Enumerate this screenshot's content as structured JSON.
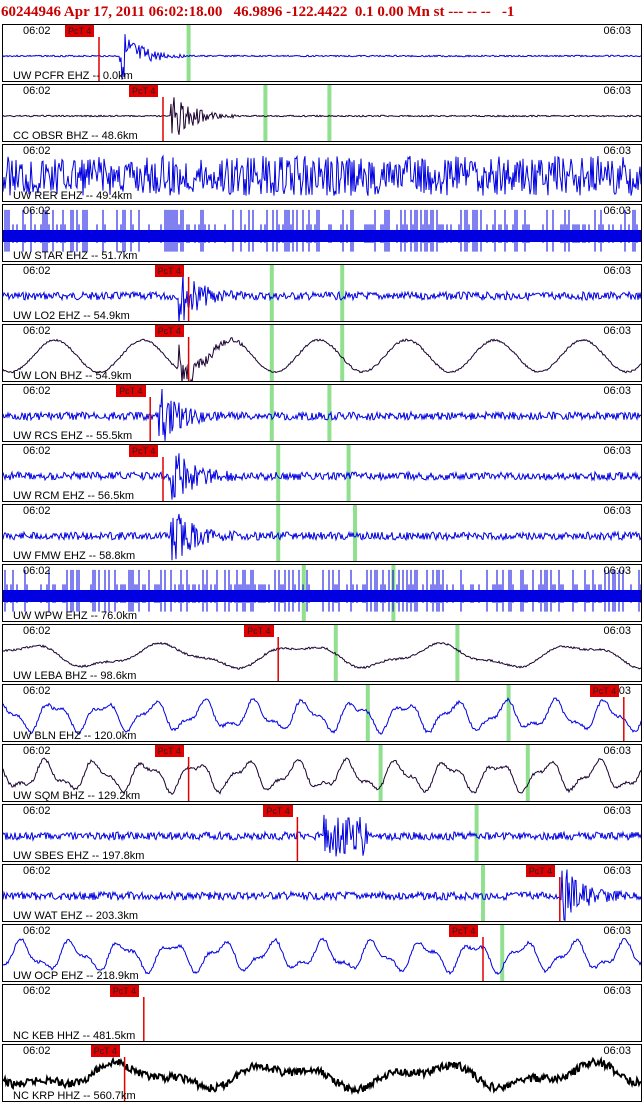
{
  "header": {
    "text": "60244946 Apr 17, 2011 06:02:18.00   46.9896 -122.4422  0.1 0.00 Mn st --- -- --   -1"
  },
  "time_labels": {
    "start": "06:02",
    "end": "06:03"
  },
  "pick_label": "PcT 4",
  "colors": {
    "header": "#c80000",
    "blue_trace": "#0000e0",
    "dark_trace": "#1a0030",
    "black_trace": "#000000",
    "pick": "#e00000",
    "marker": "#90e090"
  },
  "traces": [
    {
      "station": "UW PCFR EHZ -- 0.0km",
      "color": "blue",
      "style": "flat_burst",
      "pick": 0.15,
      "burst": 0.19,
      "markers": [
        0.29
      ]
    },
    {
      "station": "CC OBSR BHZ -- 48.6km",
      "color": "dark",
      "style": "flat_burst",
      "pick": 0.25,
      "burst": 0.27,
      "markers": [
        0.41,
        0.51
      ]
    },
    {
      "station": "UW RER EHZ -- 49.4km",
      "color": "blue",
      "style": "noisy",
      "markers": []
    },
    {
      "station": "UW STAR EHZ -- 51.7km",
      "color": "blue",
      "style": "spiky",
      "markers": []
    },
    {
      "station": "UW LO2 EHZ -- 54.9km",
      "color": "blue",
      "style": "noise_burst",
      "pick": 0.29,
      "burst": 0.28,
      "markers": [
        0.42,
        0.53
      ]
    },
    {
      "station": "UW LON BHZ -- 54.9km",
      "color": "dark",
      "style": "wave_burst",
      "pick": 0.29,
      "burst": 0.28,
      "markers": [
        0.42,
        0.53
      ]
    },
    {
      "station": "UW RCS EHZ -- 55.5km",
      "color": "blue",
      "style": "noise_burst",
      "pick": 0.23,
      "burst": 0.25,
      "markers": [
        0.42,
        0.51
      ]
    },
    {
      "station": "UW RCM EHZ -- 56.5km",
      "color": "blue",
      "style": "noise_burst",
      "pick": 0.25,
      "burst": 0.27,
      "markers": [
        0.43,
        0.54
      ]
    },
    {
      "station": "UW FMW EHZ -- 58.8km",
      "color": "blue",
      "style": "noise_burst",
      "burst": 0.27,
      "markers": [
        0.43,
        0.55
      ]
    },
    {
      "station": "UW WPW EHZ -- 76.0km",
      "color": "blue",
      "style": "spiky",
      "markers": [
        0.47,
        0.61
      ]
    },
    {
      "station": "UW LEBA BHZ -- 98.6km",
      "color": "dark",
      "style": "wave",
      "pick": 0.43,
      "markers": [
        0.52,
        0.71
      ]
    },
    {
      "station": "UW BLN EHZ -- 120.0km",
      "color": "blue",
      "style": "wave_fast",
      "pick": 0.97,
      "markers": [
        0.57,
        0.79
      ]
    },
    {
      "station": "UW SQM BHZ -- 129.2km",
      "color": "dark",
      "style": "wave_fast",
      "pick": 0.29,
      "markers": [
        0.59,
        0.82
      ]
    },
    {
      "station": "UW SBES EHZ -- 197.8km",
      "color": "blue",
      "style": "noise_block",
      "pick": 0.46,
      "burst": 0.5,
      "markers": [
        0.74
      ]
    },
    {
      "station": "UW WAT EHZ -- 203.3km",
      "color": "blue",
      "style": "noise_burst",
      "pick": 0.87,
      "burst": 0.88,
      "markers": [
        0.75
      ]
    },
    {
      "station": "UW OCP EHZ -- 218.9km",
      "color": "blue",
      "style": "wave_fast",
      "pick": 0.75,
      "markers": [
        0.78
      ]
    },
    {
      "station": "NC KEB HHZ -- 481.5km",
      "color": "dark",
      "style": "empty",
      "pick": 0.22,
      "markers": []
    },
    {
      "station": "NC KRP HHZ -- 560.7km",
      "color": "black",
      "style": "wave_thick",
      "pick": 0.19,
      "markers": []
    }
  ]
}
